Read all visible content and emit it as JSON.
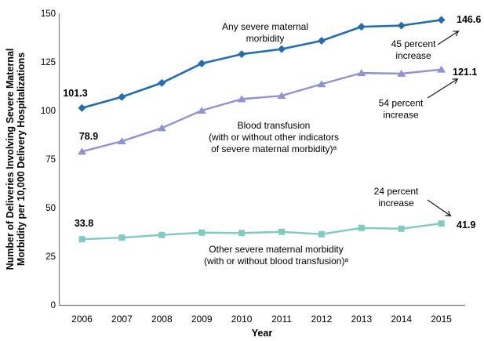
{
  "chart_data": {
    "type": "line",
    "x": [
      "2006",
      "2007",
      "2008",
      "2009",
      "2010",
      "2011",
      "2012",
      "2013",
      "2014",
      "2015"
    ],
    "xlabel": "Year",
    "ylabel": "Number of Deliveries Involving Severe Maternal Morbidity per 10,000 Delivery Hospitalizations",
    "ylabel_lines": [
      "Number of Deliveries Involving Severe Maternal",
      "Morbidity per 10,000 Delivery Hospitalizations"
    ],
    "ylim": [
      0,
      150
    ],
    "yticks": [
      0,
      25,
      50,
      75,
      100,
      125,
      150
    ],
    "grid": false,
    "legend_position": "none (series identified by inline annotations)",
    "series": [
      {
        "name": "Any severe maternal morbidity",
        "label_lines": [
          "Any severe maternal",
          "morbidity"
        ],
        "marker": "diamond",
        "color": "#1f6db4",
        "values": [
          101.3,
          107.0,
          114.2,
          124.2,
          129.0,
          131.6,
          135.9,
          143.1,
          143.7,
          146.6
        ],
        "first_point_label": "101.3",
        "last_point_label": "146.6",
        "increase_lines": [
          "45 percent",
          "increase"
        ],
        "increase_text": "45 percent increase"
      },
      {
        "name": "Blood transfusion (with or without other indicators of severe maternal morbidity)ᵃ",
        "label_lines": [
          "Blood transfusion",
          "(with or without other indicators",
          "of severe maternal morbidity)ᵃ"
        ],
        "marker": "triangle",
        "color": "#8f92d8",
        "values": [
          78.9,
          84.2,
          91.0,
          100.0,
          105.9,
          107.6,
          113.6,
          119.3,
          119.0,
          121.1
        ],
        "first_point_label": "78.9",
        "last_point_label": "121.1",
        "increase_lines": [
          "54 percent",
          "increase"
        ],
        "increase_text": "54 percent increase"
      },
      {
        "name": "Other severe maternal morbidity (with or without blood transfusion)ᵃ",
        "label_lines": [
          "Other severe maternal morbidity",
          "(with or without blood transfusion)ᵃ"
        ],
        "marker": "square",
        "color": "#7dccc3",
        "values": [
          33.8,
          34.6,
          36.0,
          37.2,
          37.0,
          37.6,
          36.4,
          39.6,
          39.2,
          41.9
        ],
        "first_point_label": "33.8",
        "last_point_label": "41.9",
        "increase_lines": [
          "24 percent",
          "increase"
        ],
        "increase_text": "24 percent increase"
      }
    ],
    "colors": {
      "axis_line": "#808080",
      "arrow": "#1a1a1a",
      "text": "#000000",
      "background": "#ffffff"
    }
  }
}
